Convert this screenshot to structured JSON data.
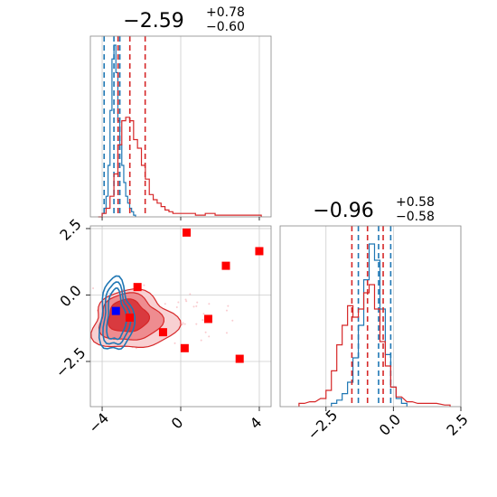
{
  "chart_data": [
    {
      "type": "histogram",
      "panel": "marginal-x",
      "title_value": "−2.59",
      "title_upper": "+0.78",
      "title_lower": "−0.60",
      "xlim": [
        -4.6,
        4.6
      ],
      "xticks": [
        -4,
        0,
        4
      ],
      "series": [
        {
          "color": "#1f77b4",
          "bin_centers": [
            -3.95,
            -3.85,
            -3.75,
            -3.65,
            -3.55,
            -3.45,
            -3.35,
            -3.25,
            -3.15,
            -3.05,
            -2.95,
            -2.85,
            -2.75,
            -2.65,
            -2.55,
            -2.45,
            -2.35
          ],
          "counts": [
            0.02,
            0.05,
            0.12,
            0.3,
            0.62,
            0.92,
            1.0,
            0.84,
            0.56,
            0.42,
            0.3,
            0.2,
            0.12,
            0.08,
            0.05,
            0.03,
            0.01
          ],
          "quantiles": [
            -3.9,
            -3.4,
            -3.1
          ]
        },
        {
          "color": "#d62728",
          "bin_centers": [
            -4.1,
            -3.9,
            -3.7,
            -3.5,
            -3.3,
            -3.1,
            -2.9,
            -2.7,
            -2.5,
            -2.3,
            -2.1,
            -1.9,
            -1.7,
            -1.5,
            -1.3,
            -1.1,
            -0.9,
            -0.7,
            -0.5,
            -0.3,
            0.0,
            0.5,
            1.0,
            1.5,
            2.0,
            2.5,
            3.0,
            3.5,
            4.0
          ],
          "counts": [
            0.0,
            0.02,
            0.05,
            0.12,
            0.25,
            0.42,
            0.56,
            0.58,
            0.56,
            0.45,
            0.4,
            0.3,
            0.22,
            0.13,
            0.1,
            0.08,
            0.06,
            0.04,
            0.03,
            0.02,
            0.02,
            0.02,
            0.01,
            0.02,
            0.01,
            0.01,
            0.01,
            0.01,
            0.01
          ],
          "quantiles": [
            -3.19,
            -2.59,
            -1.81
          ]
        }
      ]
    },
    {
      "type": "contour-scatter",
      "panel": "joint",
      "xlim": [
        -4.6,
        4.6
      ],
      "ylim": [
        -4.2,
        2.6
      ],
      "xticks": [
        -4,
        0,
        4
      ],
      "yticks": [
        2.5,
        0.0,
        -2.5
      ],
      "ytick_labels": [
        "2.5",
        "0.0",
        "−2.5"
      ],
      "red_markers": [
        {
          "x": 0.3,
          "y": 2.35
        },
        {
          "x": 4.0,
          "y": 1.65
        },
        {
          "x": 2.3,
          "y": 1.1
        },
        {
          "x": -2.2,
          "y": 0.3
        },
        {
          "x": -2.6,
          "y": -0.85
        },
        {
          "x": 1.4,
          "y": -0.9
        },
        {
          "x": -0.9,
          "y": -1.4
        },
        {
          "x": 0.2,
          "y": -2.0
        },
        {
          "x": 3.0,
          "y": -2.4
        }
      ],
      "blue_marker": {
        "x": -3.3,
        "y": -0.6
      },
      "red_contour_center": {
        "x": -2.7,
        "y": -0.8
      },
      "blue_contour_center": {
        "x": -3.3,
        "y": -0.8
      }
    },
    {
      "type": "histogram",
      "panel": "marginal-y",
      "title_value": "−0.96",
      "title_upper": "+0.58",
      "title_lower": "−0.58",
      "xlim": [
        -4.2,
        2.5
      ],
      "xticks": [
        -2.5,
        0.0,
        2.5
      ],
      "xtick_labels": [
        "−2.5",
        "0.0",
        "2.5"
      ],
      "series": [
        {
          "color": "#1f77b4",
          "bin_centers": [
            -2.2,
            -2.0,
            -1.8,
            -1.6,
            -1.4,
            -1.2,
            -1.0,
            -0.8,
            -0.6,
            -0.4,
            -0.2,
            0.0,
            0.2,
            0.4
          ],
          "counts": [
            0.02,
            0.04,
            0.08,
            0.15,
            0.3,
            0.5,
            0.78,
            1.0,
            0.9,
            0.6,
            0.32,
            0.12,
            0.05,
            0.02
          ],
          "quantiles": [
            -1.3,
            -0.55,
            -0.1
          ]
        },
        {
          "color": "#d62728",
          "bin_centers": [
            -3.4,
            -3.0,
            -2.6,
            -2.4,
            -2.2,
            -2.0,
            -1.8,
            -1.6,
            -1.4,
            -1.2,
            -1.0,
            -0.8,
            -0.6,
            -0.4,
            -0.2,
            0.0,
            0.2,
            0.6,
            1.0,
            1.5,
            2.0
          ],
          "counts": [
            0.02,
            0.03,
            0.05,
            0.1,
            0.22,
            0.38,
            0.5,
            0.62,
            0.55,
            0.6,
            0.7,
            0.75,
            0.6,
            0.4,
            0.25,
            0.12,
            0.06,
            0.03,
            0.02,
            0.02,
            0.01
          ],
          "quantiles": [
            -1.54,
            -0.96,
            -0.38
          ]
        }
      ]
    }
  ]
}
